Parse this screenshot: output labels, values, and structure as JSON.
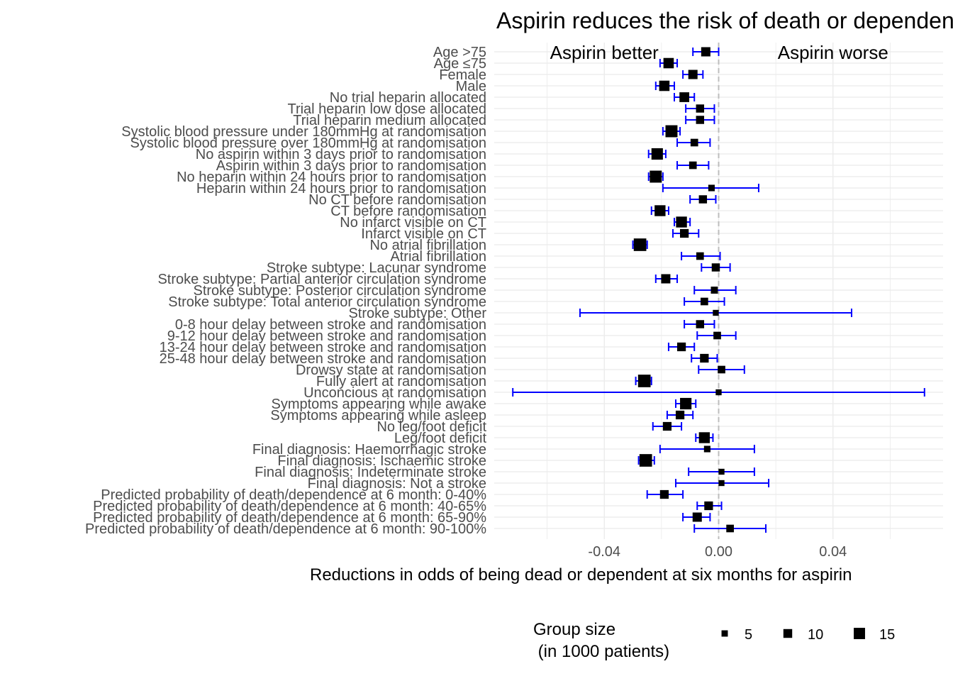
{
  "chart_data": {
    "type": "forest",
    "title": "Aspirin reduces the risk of death or dependence",
    "xlabel": "Reductions in odds of being dead or dependent at six months for aspirin",
    "ylabel": "",
    "xlim": [
      -0.0785,
      0.0785
    ],
    "xticks": [
      -0.04,
      0.0,
      0.04
    ],
    "xtick_labels": [
      "-0.04",
      "0.00",
      "0.04"
    ],
    "reference_line": 0.0,
    "grid": true,
    "annotations": [
      {
        "text": "Aspirin better",
        "x": -0.04
      },
      {
        "text": "Aspirin worse",
        "x": 0.04
      }
    ],
    "point_color": "#000000",
    "error_color": "#0000ff",
    "legend": {
      "title_line1": "Group size",
      "title_line2": " (in 1000 patients)",
      "placement": "bottom",
      "entries": [
        {
          "label": "5",
          "size": 5
        },
        {
          "label": "10",
          "size": 10
        },
        {
          "label": "15",
          "size": 15
        }
      ]
    },
    "rows": [
      {
        "label": "Age >75",
        "est": -0.0045,
        "lo": -0.009,
        "hi": 0.0,
        "size": 9
      },
      {
        "label": "Age ≤75",
        "est": -0.0175,
        "lo": -0.0205,
        "hi": -0.0145,
        "size": 11
      },
      {
        "label": "Female",
        "est": -0.009,
        "lo": -0.0125,
        "hi": -0.0055,
        "size": 9
      },
      {
        "label": "Male",
        "est": -0.019,
        "lo": -0.022,
        "hi": -0.0155,
        "size": 11
      },
      {
        "label": "No trial heparin allocated",
        "est": -0.012,
        "lo": -0.0155,
        "hi": -0.0085,
        "size": 10
      },
      {
        "label": "Trial heparin low dose allocated",
        "est": -0.0065,
        "lo": -0.0115,
        "hi": -0.0015,
        "size": 7
      },
      {
        "label": "Trial heparin medium allocated",
        "est": -0.0065,
        "lo": -0.0115,
        "hi": -0.0015,
        "size": 7
      },
      {
        "label": "Systolic blood pressure under 180mmHg at randomisation",
        "est": -0.0165,
        "lo": -0.0195,
        "hi": -0.0135,
        "size": 14
      },
      {
        "label": "Systolic blood pressure over 180mmHg at randomisation",
        "est": -0.0085,
        "lo": -0.0145,
        "hi": -0.003,
        "size": 6
      },
      {
        "label": "No aspirin within 3 days prior to randomisation",
        "est": -0.0215,
        "lo": -0.0245,
        "hi": -0.0185,
        "size": 13
      },
      {
        "label": "Aspirin within 3 days prior to randomisation",
        "est": -0.009,
        "lo": -0.0145,
        "hi": -0.0035,
        "size": 6
      },
      {
        "label": "No heparin within 24 hours prior to randomisation",
        "est": -0.022,
        "lo": -0.0245,
        "hi": -0.0195,
        "size": 14
      },
      {
        "label": "Heparin within 24 hours prior to randomisation",
        "est": -0.0025,
        "lo": -0.0195,
        "hi": 0.014,
        "size": 4
      },
      {
        "label": "No CT before randomisation",
        "est": -0.0055,
        "lo": -0.01,
        "hi": -0.001,
        "size": 7
      },
      {
        "label": "CT before randomisation",
        "est": -0.0205,
        "lo": -0.0235,
        "hi": -0.0175,
        "size": 12
      },
      {
        "label": "No infarct visible on CT",
        "est": -0.013,
        "lo": -0.0155,
        "hi": -0.01,
        "size": 12
      },
      {
        "label": "Infarct visible on CT",
        "est": -0.012,
        "lo": -0.016,
        "hi": -0.007,
        "size": 8
      },
      {
        "label": "No atrial fibrillation",
        "est": -0.0275,
        "lo": -0.03,
        "hi": -0.025,
        "size": 15
      },
      {
        "label": "Atrial fibrillation",
        "est": -0.0065,
        "lo": -0.013,
        "hi": 0.0005,
        "size": 6
      },
      {
        "label": "Stroke subtype: Lacunar syndrome",
        "est": -0.001,
        "lo": -0.006,
        "hi": 0.004,
        "size": 7
      },
      {
        "label": "Stroke subtype: Partial anterior circulation syndrome",
        "est": -0.0185,
        "lo": -0.022,
        "hi": -0.0145,
        "size": 9
      },
      {
        "label": "Stroke subtype: Posterior circulation syndrome",
        "est": -0.0015,
        "lo": -0.0085,
        "hi": 0.006,
        "size": 5
      },
      {
        "label": "Stroke subtype: Total anterior circulation syndrome",
        "est": -0.005,
        "lo": -0.012,
        "hi": 0.002,
        "size": 6
      },
      {
        "label": "Stroke subtype: Other",
        "est": -0.001,
        "lo": -0.0485,
        "hi": 0.0465,
        "size": 3
      },
      {
        "label": "0-8 hour delay between stroke and randomisation",
        "est": -0.0065,
        "lo": -0.012,
        "hi": -0.0015,
        "size": 7
      },
      {
        "label": "9-12 hour delay between stroke and randomisation",
        "est": -0.0005,
        "lo": -0.0075,
        "hi": 0.006,
        "size": 6
      },
      {
        "label": "13-24 hour delay between stroke and randomisation",
        "est": -0.013,
        "lo": -0.0175,
        "hi": -0.0085,
        "size": 8
      },
      {
        "label": "25-48 hour delay between stroke and randomisation",
        "est": -0.005,
        "lo": -0.0095,
        "hi": -0.0005,
        "size": 8
      },
      {
        "label": "Drowsy state at randomisation",
        "est": 0.001,
        "lo": -0.007,
        "hi": 0.009,
        "size": 6
      },
      {
        "label": "Fully alert at randomisation",
        "est": -0.026,
        "lo": -0.029,
        "hi": -0.0235,
        "size": 15
      },
      {
        "label": "Unconcious at randomisation",
        "est": 0.0,
        "lo": -0.072,
        "hi": 0.072,
        "size": 3
      },
      {
        "label": "Symptoms appearing while awake",
        "est": -0.0115,
        "lo": -0.015,
        "hi": -0.008,
        "size": 13
      },
      {
        "label": "Symptoms appearing while asleep",
        "est": -0.0135,
        "lo": -0.018,
        "hi": -0.009,
        "size": 8
      },
      {
        "label": "No leg/foot deficit",
        "est": -0.018,
        "lo": -0.023,
        "hi": -0.013,
        "size": 8
      },
      {
        "label": "Leg/foot deficit",
        "est": -0.005,
        "lo": -0.008,
        "hi": -0.002,
        "size": 12
      },
      {
        "label": "Final diagnosis: Haemorrhagic stroke",
        "est": -0.004,
        "lo": -0.0205,
        "hi": 0.0125,
        "size": 4
      },
      {
        "label": "Final diagnosis: Ischaemic stroke",
        "est": -0.0255,
        "lo": -0.028,
        "hi": -0.0225,
        "size": 15
      },
      {
        "label": "Final diagnosis: Indeterminate stroke",
        "est": 0.001,
        "lo": -0.0105,
        "hi": 0.0125,
        "size": 3
      },
      {
        "label": "Final diagnosis: Not a stroke",
        "est": 0.001,
        "lo": -0.015,
        "hi": 0.0175,
        "size": 3
      },
      {
        "label": "Predicted probability of death/dependence at 6 month: 0-40%",
        "est": -0.019,
        "lo": -0.025,
        "hi": -0.0125,
        "size": 8
      },
      {
        "label": "Predicted probability of death/dependence at 6 month: 40-65%",
        "est": -0.0035,
        "lo": -0.0075,
        "hi": 0.001,
        "size": 8
      },
      {
        "label": "Predicted probability of death/dependence at 6 month: 65-90%",
        "est": -0.0075,
        "lo": -0.0125,
        "hi": -0.003,
        "size": 9
      },
      {
        "label": "Predicted probability of death/dependence at 6 month: 90-100%",
        "est": 0.004,
        "lo": -0.0085,
        "hi": 0.0165,
        "size": 6
      }
    ]
  }
}
